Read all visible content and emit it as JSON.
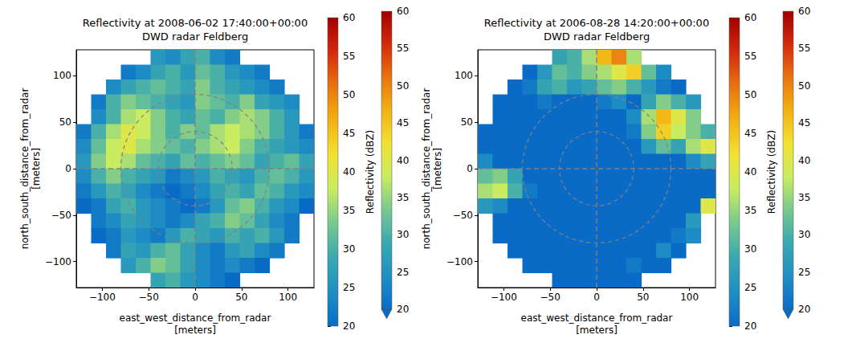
{
  "chart_data": [
    {
      "type": "heatmap",
      "title": "Reflectivity at 2008-06-02 17:40:00+00:00",
      "subtitle": "DWD radar Feldberg",
      "x_label": "east_west_distance_from_radar [meters]",
      "y_label": "north_south_distance_from_radar [meters]",
      "xlim": [
        -128,
        128
      ],
      "ylim": [
        -128,
        128
      ],
      "xticks": [
        {
          "value": -100,
          "label": "−100"
        },
        {
          "value": -50,
          "label": "−50"
        },
        0,
        50,
        100
      ],
      "yticks": [
        {
          "value": -100,
          "label": "−100"
        },
        {
          "value": -50,
          "label": "−50"
        },
        0,
        50,
        100
      ],
      "x": [
        -120,
        -104,
        -88,
        -72,
        -56,
        -40,
        -24,
        -8,
        8,
        24,
        40,
        56,
        72,
        88,
        104,
        120
      ],
      "y": [
        120,
        104,
        88,
        72,
        56,
        40,
        24,
        8,
        -8,
        -24,
        -40,
        -56,
        -72,
        -88,
        -104,
        -120
      ],
      "values": [
        [
          null,
          null,
          null,
          null,
          null,
          26,
          24,
          28,
          30,
          24,
          22,
          null,
          null,
          null,
          null,
          null
        ],
        [
          null,
          null,
          null,
          22,
          24,
          28,
          30,
          26,
          32,
          30,
          26,
          24,
          22,
          null,
          null,
          null
        ],
        [
          null,
          null,
          24,
          28,
          30,
          32,
          30,
          28,
          34,
          30,
          28,
          26,
          24,
          22,
          null,
          null
        ],
        [
          null,
          22,
          30,
          34,
          32,
          30,
          28,
          26,
          34,
          32,
          30,
          34,
          28,
          26,
          24,
          null
        ],
        [
          null,
          24,
          30,
          36,
          38,
          34,
          30,
          28,
          32,
          30,
          34,
          36,
          34,
          30,
          26,
          null
        ],
        [
          22,
          30,
          36,
          40,
          38,
          34,
          30,
          34,
          32,
          36,
          38,
          36,
          34,
          30,
          26,
          22
        ],
        [
          24,
          32,
          38,
          40,
          36,
          34,
          32,
          30,
          34,
          36,
          38,
          34,
          30,
          28,
          26,
          24
        ],
        [
          26,
          34,
          38,
          36,
          32,
          30,
          28,
          32,
          30,
          32,
          34,
          32,
          28,
          30,
          32,
          28
        ],
        [
          24,
          30,
          34,
          30,
          28,
          26,
          22,
          24,
          26,
          30,
          28,
          26,
          30,
          32,
          30,
          26
        ],
        [
          22,
          26,
          30,
          28,
          24,
          22,
          20,
          22,
          24,
          28,
          30,
          28,
          32,
          30,
          26,
          24
        ],
        [
          20,
          22,
          28,
          30,
          26,
          24,
          22,
          20,
          22,
          26,
          32,
          34,
          30,
          26,
          24,
          20
        ],
        [
          null,
          22,
          24,
          28,
          26,
          24,
          22,
          24,
          28,
          30,
          34,
          32,
          28,
          24,
          22,
          null
        ],
        [
          null,
          20,
          22,
          26,
          24,
          22,
          26,
          30,
          28,
          26,
          30,
          28,
          30,
          26,
          22,
          null
        ],
        [
          null,
          null,
          22,
          28,
          26,
          30,
          32,
          28,
          24,
          22,
          26,
          28,
          24,
          22,
          null,
          null
        ],
        [
          null,
          null,
          null,
          26,
          30,
          34,
          32,
          28,
          24,
          22,
          24,
          22,
          20,
          null,
          null,
          null
        ],
        [
          null,
          null,
          null,
          null,
          null,
          28,
          30,
          26,
          24,
          22,
          20,
          null,
          null,
          null,
          null,
          null
        ]
      ],
      "rings": [
        40,
        80
      ],
      "center": [
        0,
        0
      ],
      "colorbar": {
        "label": "Reflectivity (dBZ)",
        "range": [
          20,
          60
        ],
        "ticks": [
          20,
          25,
          30,
          35,
          40,
          45,
          50,
          55,
          60
        ]
      }
    },
    {
      "type": "heatmap",
      "title": "Reflectivity at 2006-08-28 14:20:00+00:00",
      "subtitle": "DWD radar Feldberg",
      "x_label": "east_west_distance_from_radar [meters]",
      "y_label": "north_south_distance_from_radar [meters]",
      "xlim": [
        -128,
        128
      ],
      "ylim": [
        -128,
        128
      ],
      "xticks": [
        {
          "value": -100,
          "label": "−100"
        },
        {
          "value": -50,
          "label": "−50"
        },
        0,
        50,
        100
      ],
      "yticks": [
        {
          "value": -100,
          "label": "−100"
        },
        {
          "value": -50,
          "label": "−50"
        },
        0,
        50,
        100
      ],
      "x": [
        -120,
        -104,
        -88,
        -72,
        -56,
        -40,
        -24,
        -8,
        8,
        24,
        40,
        56,
        72,
        88,
        104,
        120
      ],
      "y": [
        120,
        104,
        88,
        72,
        56,
        40,
        24,
        8,
        -8,
        -24,
        -40,
        -56,
        -72,
        -88,
        -104,
        -120
      ],
      "values": [
        [
          null,
          null,
          null,
          null,
          null,
          28,
          30,
          36,
          46,
          50,
          36,
          null,
          null,
          null,
          null,
          null
        ],
        [
          null,
          null,
          null,
          20,
          26,
          32,
          30,
          34,
          36,
          40,
          44,
          32,
          24,
          null,
          null,
          null
        ],
        [
          null,
          null,
          20,
          22,
          28,
          30,
          26,
          28,
          32,
          34,
          30,
          26,
          22,
          20,
          null,
          null
        ],
        [
          null,
          20,
          20,
          20,
          22,
          20,
          20,
          20,
          22,
          24,
          20,
          28,
          34,
          30,
          26,
          null
        ],
        [
          null,
          20,
          20,
          20,
          20,
          20,
          20,
          20,
          20,
          20,
          24,
          36,
          46,
          40,
          34,
          null
        ],
        [
          20,
          20,
          20,
          20,
          20,
          20,
          20,
          20,
          20,
          20,
          22,
          34,
          44,
          38,
          34,
          30
        ],
        [
          20,
          20,
          20,
          20,
          20,
          20,
          20,
          20,
          20,
          20,
          20,
          26,
          32,
          28,
          36,
          40
        ],
        [
          24,
          20,
          20,
          20,
          20,
          20,
          20,
          20,
          20,
          20,
          20,
          20,
          20,
          20,
          24,
          28
        ],
        [
          32,
          34,
          28,
          20,
          20,
          20,
          20,
          20,
          20,
          20,
          20,
          20,
          20,
          20,
          20,
          20
        ],
        [
          36,
          38,
          30,
          22,
          20,
          20,
          20,
          20,
          20,
          20,
          20,
          20,
          20,
          20,
          20,
          20
        ],
        [
          26,
          24,
          20,
          20,
          20,
          20,
          20,
          20,
          20,
          20,
          20,
          20,
          20,
          20,
          20,
          40
        ],
        [
          null,
          20,
          20,
          20,
          20,
          20,
          20,
          20,
          20,
          20,
          20,
          20,
          20,
          20,
          26,
          null
        ],
        [
          null,
          20,
          20,
          20,
          20,
          20,
          20,
          20,
          20,
          20,
          20,
          20,
          20,
          22,
          24,
          null
        ],
        [
          null,
          null,
          20,
          20,
          20,
          20,
          20,
          20,
          20,
          20,
          20,
          20,
          24,
          20,
          null,
          null
        ],
        [
          null,
          null,
          null,
          20,
          20,
          20,
          20,
          20,
          20,
          20,
          22,
          20,
          20,
          null,
          null,
          null
        ],
        [
          null,
          null,
          null,
          null,
          null,
          20,
          20,
          20,
          20,
          20,
          20,
          null,
          null,
          null,
          null,
          null
        ]
      ],
      "rings": [
        40,
        80
      ],
      "center": [
        0,
        0
      ],
      "colorbar": {
        "label": "Reflectivity (dBZ)",
        "range": [
          20,
          60
        ],
        "ticks": [
          20,
          25,
          30,
          35,
          40,
          45,
          50,
          55,
          60
        ]
      }
    }
  ]
}
